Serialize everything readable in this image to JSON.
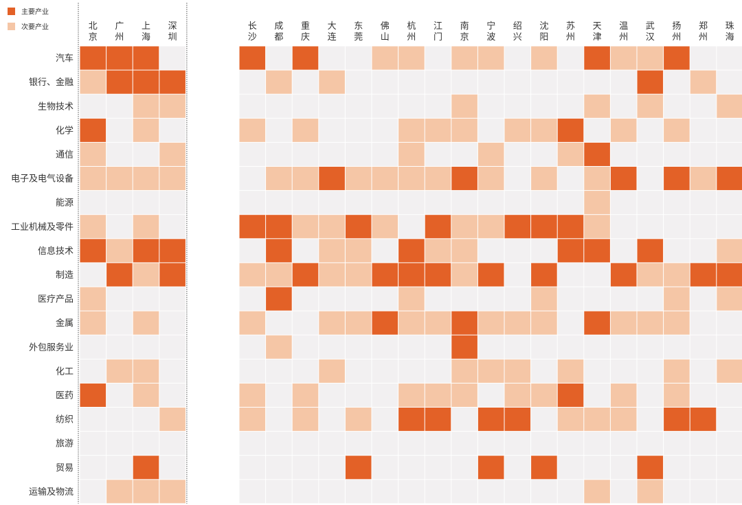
{
  "chart_data": {
    "type": "heatmap",
    "legend": [
      {
        "key": "primary",
        "label": "主要产业",
        "color": "#e36127"
      },
      {
        "key": "secondary",
        "label": "次要产业",
        "color": "#f5c6a6"
      }
    ],
    "empty_color": "#f2f0f1",
    "columns": [
      "北京",
      "广州",
      "上海",
      "深圳",
      "长沙",
      "成都",
      "重庆",
      "大连",
      "东莞",
      "佛山",
      "杭州",
      "江门",
      "南京",
      "宁波",
      "绍兴",
      "沈阳",
      "苏州",
      "天津",
      "温州",
      "武汉",
      "扬州",
      "郑州",
      "珠海"
    ],
    "rows": [
      {
        "label": "汽车",
        "values": [
          2,
          2,
          2,
          0,
          2,
          0,
          2,
          0,
          0,
          1,
          1,
          0,
          1,
          1,
          0,
          1,
          0,
          2,
          1,
          1,
          2,
          0,
          0
        ]
      },
      {
        "label": "银行、金融",
        "values": [
          1,
          2,
          2,
          2,
          0,
          1,
          0,
          1,
          0,
          0,
          0,
          0,
          0,
          0,
          0,
          0,
          0,
          0,
          0,
          2,
          0,
          1,
          0
        ]
      },
      {
        "label": "生物技术",
        "values": [
          0,
          0,
          1,
          1,
          0,
          0,
          0,
          0,
          0,
          0,
          0,
          0,
          1,
          0,
          0,
          0,
          0,
          1,
          0,
          1,
          0,
          0,
          1
        ]
      },
      {
        "label": "化学",
        "values": [
          2,
          0,
          1,
          0,
          1,
          0,
          1,
          0,
          0,
          0,
          1,
          1,
          1,
          0,
          1,
          1,
          2,
          0,
          1,
          0,
          1,
          0,
          0
        ]
      },
      {
        "label": "通信",
        "values": [
          1,
          0,
          0,
          1,
          0,
          0,
          0,
          0,
          0,
          0,
          1,
          0,
          0,
          1,
          0,
          0,
          1,
          2,
          0,
          0,
          0,
          0,
          0
        ]
      },
      {
        "label": "电子及电气设备",
        "values": [
          1,
          1,
          1,
          1,
          0,
          1,
          1,
          2,
          1,
          1,
          1,
          1,
          2,
          1,
          0,
          1,
          0,
          1,
          2,
          0,
          2,
          1,
          2
        ]
      },
      {
        "label": "能源",
        "values": [
          0,
          0,
          0,
          0,
          0,
          0,
          0,
          0,
          0,
          0,
          0,
          0,
          0,
          0,
          0,
          0,
          0,
          1,
          0,
          0,
          0,
          0,
          0
        ]
      },
      {
        "label": "工业机械及零件",
        "values": [
          1,
          0,
          1,
          0,
          2,
          2,
          1,
          1,
          2,
          1,
          0,
          2,
          1,
          1,
          2,
          2,
          2,
          1,
          0,
          0,
          0,
          0,
          0
        ]
      },
      {
        "label": "信息技术",
        "values": [
          2,
          1,
          2,
          2,
          0,
          2,
          0,
          1,
          1,
          0,
          2,
          1,
          1,
          0,
          0,
          0,
          2,
          2,
          0,
          2,
          0,
          0,
          1
        ]
      },
      {
        "label": "制造",
        "values": [
          0,
          2,
          1,
          2,
          1,
          1,
          2,
          1,
          1,
          2,
          2,
          2,
          1,
          2,
          0,
          2,
          0,
          0,
          2,
          1,
          1,
          2,
          2
        ]
      },
      {
        "label": "医疗产品",
        "values": [
          1,
          0,
          0,
          0,
          0,
          2,
          0,
          0,
          0,
          0,
          1,
          0,
          0,
          0,
          0,
          1,
          0,
          0,
          0,
          0,
          1,
          0,
          1
        ]
      },
      {
        "label": "金属",
        "values": [
          1,
          0,
          1,
          0,
          1,
          0,
          0,
          1,
          1,
          2,
          1,
          1,
          2,
          1,
          1,
          1,
          0,
          2,
          1,
          1,
          1,
          0,
          0
        ]
      },
      {
        "label": "外包服务业",
        "values": [
          0,
          0,
          0,
          0,
          0,
          1,
          0,
          0,
          0,
          0,
          0,
          0,
          2,
          0,
          0,
          0,
          0,
          0,
          0,
          0,
          0,
          0,
          0
        ]
      },
      {
        "label": "化工",
        "values": [
          0,
          1,
          1,
          0,
          0,
          0,
          0,
          1,
          0,
          0,
          0,
          0,
          1,
          1,
          1,
          0,
          1,
          0,
          0,
          0,
          1,
          0,
          1
        ]
      },
      {
        "label": "医药",
        "values": [
          2,
          0,
          1,
          0,
          1,
          0,
          1,
          0,
          0,
          0,
          1,
          1,
          1,
          0,
          1,
          1,
          2,
          0,
          1,
          0,
          1,
          0,
          0
        ]
      },
      {
        "label": "纺织",
        "values": [
          0,
          0,
          0,
          1,
          1,
          0,
          1,
          0,
          1,
          0,
          2,
          2,
          0,
          2,
          2,
          0,
          1,
          1,
          1,
          0,
          2,
          2,
          0
        ]
      },
      {
        "label": "旅游",
        "values": [
          0,
          0,
          0,
          0,
          0,
          0,
          0,
          0,
          0,
          0,
          0,
          0,
          0,
          0,
          0,
          0,
          0,
          0,
          0,
          0,
          0,
          0,
          0
        ]
      },
      {
        "label": "贸易",
        "values": [
          0,
          0,
          2,
          0,
          0,
          0,
          0,
          0,
          2,
          0,
          0,
          0,
          0,
          2,
          0,
          2,
          0,
          0,
          0,
          2,
          0,
          0,
          0
        ]
      },
      {
        "label": "运输及物流",
        "values": [
          0,
          1,
          1,
          1,
          0,
          0,
          0,
          0,
          0,
          0,
          0,
          0,
          0,
          0,
          0,
          0,
          0,
          1,
          0,
          1,
          0,
          0,
          0
        ]
      }
    ]
  }
}
